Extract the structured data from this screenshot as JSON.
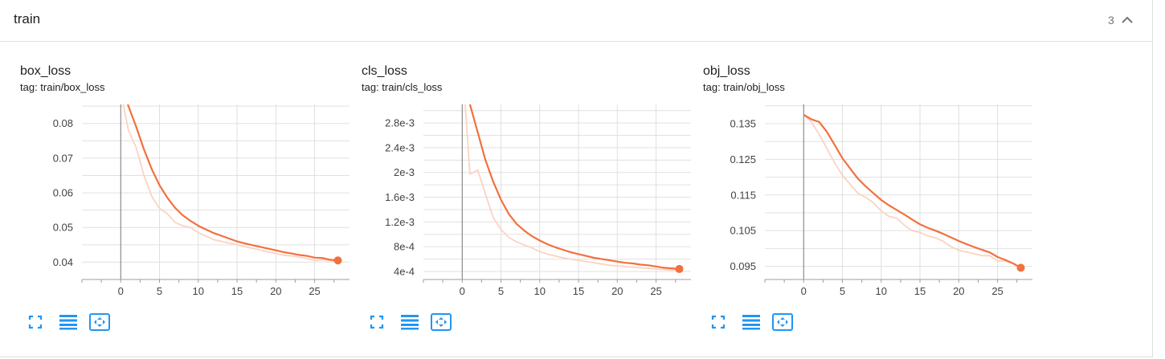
{
  "group": {
    "title": "train",
    "count": "3",
    "toggle_icon": "chevron-up-icon"
  },
  "colors": {
    "smoothed": "#f2703e",
    "raw": "#fbd3c3",
    "grid": "#e0e0e0",
    "axis": "#9e9e9e",
    "zero_line": "#757575",
    "toolbar_icon": "#2196f3"
  },
  "cards": [
    {
      "title": "box_loss",
      "tag": "tag: train/box_loss"
    },
    {
      "title": "cls_loss",
      "tag": "tag: train/cls_loss"
    },
    {
      "title": "obj_loss",
      "tag": "tag: train/obj_loss"
    }
  ],
  "toolbar": {
    "fullscreen_icon": "fullscreen-icon",
    "toggle_log_icon": "data-table-icon",
    "fit_domain_icon": "fit-to-domain-icon"
  },
  "chart_data": [
    {
      "type": "line",
      "title": "box_loss",
      "xlabel": "",
      "ylabel": "",
      "xlim": [
        -5,
        29.5
      ],
      "ylim": [
        0.035,
        0.0855
      ],
      "xticks": [
        0,
        5,
        10,
        15,
        20,
        25
      ],
      "xtick_labels": [
        "0",
        "5",
        "10",
        "15",
        "20",
        "25"
      ],
      "yticks": [
        0.04,
        0.05,
        0.06,
        0.07,
        0.08
      ],
      "ytick_labels": [
        "0.04",
        "0.05",
        "0.06",
        "0.07",
        "0.08"
      ],
      "grid": true,
      "series": [
        {
          "role": "raw",
          "x": [
            0,
            1,
            2,
            3,
            4,
            5,
            6,
            7,
            8,
            9,
            10,
            11,
            12,
            13,
            14,
            15,
            16,
            17,
            18,
            19,
            20,
            21,
            22,
            23,
            24,
            25,
            26,
            27,
            28
          ],
          "y": [
            0.089,
            0.078,
            0.073,
            0.065,
            0.059,
            0.0555,
            0.054,
            0.0515,
            0.0505,
            0.05,
            0.0485,
            0.0475,
            0.0465,
            0.046,
            0.0455,
            0.045,
            0.0445,
            0.044,
            0.0435,
            0.043,
            0.0425,
            0.042,
            0.0418,
            0.0415,
            0.041,
            0.0405,
            0.0407,
            0.0405,
            0.0402
          ]
        },
        {
          "role": "smoothed",
          "x": [
            0,
            1,
            2,
            3,
            4,
            5,
            6,
            7,
            8,
            9,
            10,
            11,
            12,
            13,
            14,
            15,
            16,
            17,
            18,
            19,
            20,
            21,
            22,
            23,
            24,
            25,
            26,
            27,
            28
          ],
          "y": [
            0.092,
            0.085,
            0.079,
            0.0725,
            0.0668,
            0.0622,
            0.0586,
            0.0557,
            0.0535,
            0.0519,
            0.0505,
            0.0494,
            0.0484,
            0.0476,
            0.0468,
            0.046,
            0.0454,
            0.0449,
            0.0444,
            0.0439,
            0.0434,
            0.0429,
            0.0425,
            0.0421,
            0.0418,
            0.0413,
            0.0412,
            0.0407,
            0.0405
          ]
        }
      ]
    },
    {
      "type": "line",
      "title": "cls_loss",
      "xlabel": "",
      "ylabel": "",
      "xlim": [
        -5,
        29.5
      ],
      "ylim": [
        0.00027,
        0.0031
      ],
      "xticks": [
        0,
        5,
        10,
        15,
        20,
        25
      ],
      "xtick_labels": [
        "0",
        "5",
        "10",
        "15",
        "20",
        "25"
      ],
      "yticks": [
        0.0004,
        0.0008,
        0.0012,
        0.0016,
        0.002,
        0.0024,
        0.0028
      ],
      "ytick_labels": [
        "4e-4",
        "8e-4",
        "1.2e-3",
        "1.6e-3",
        "2e-3",
        "2.4e-3",
        "2.8e-3"
      ],
      "grid": true,
      "series": [
        {
          "role": "raw",
          "x": [
            0,
            1,
            2,
            3,
            4,
            5,
            6,
            7,
            8,
            9,
            10,
            11,
            12,
            13,
            14,
            15,
            16,
            17,
            18,
            19,
            20,
            21,
            22,
            23,
            24,
            25,
            26,
            27,
            28
          ],
          "y": [
            0.0038,
            0.00197,
            0.00204,
            0.00165,
            0.00127,
            0.00108,
            0.00095,
            0.00088,
            0.00083,
            0.00078,
            0.00072,
            0.00068,
            0.00065,
            0.00062,
            0.0006,
            0.00058,
            0.00056,
            0.00054,
            0.00052,
            0.0005,
            0.00049,
            0.00048,
            0.00047,
            0.00046,
            0.00045,
            0.00044,
            0.00043,
            0.00042,
            0.00042
          ]
        },
        {
          "role": "smoothed",
          "x": [
            0,
            1,
            2,
            3,
            4,
            5,
            6,
            7,
            8,
            9,
            10,
            11,
            12,
            13,
            14,
            15,
            16,
            17,
            18,
            19,
            20,
            21,
            22,
            23,
            24,
            25,
            26,
            27,
            28
          ],
          "y": [
            0.0045,
            0.0031,
            0.00265,
            0.0022,
            0.00185,
            0.00156,
            0.00133,
            0.00117,
            0.00106,
            0.00097,
            0.0009,
            0.00084,
            0.00079,
            0.00075,
            0.00071,
            0.00068,
            0.00065,
            0.00062,
            0.0006,
            0.00058,
            0.00056,
            0.00054,
            0.00053,
            0.00051,
            0.0005,
            0.00048,
            0.00046,
            0.00045,
            0.00044
          ]
        }
      ]
    },
    {
      "type": "line",
      "title": "obj_loss",
      "xlabel": "",
      "ylabel": "",
      "xlim": [
        -5,
        29.5
      ],
      "ylim": [
        0.0913,
        0.1404
      ],
      "xticks": [
        0,
        5,
        10,
        15,
        20,
        25
      ],
      "xtick_labels": [
        "0",
        "5",
        "10",
        "15",
        "20",
        "25"
      ],
      "yticks": [
        0.095,
        0.105,
        0.115,
        0.125,
        0.135
      ],
      "ytick_labels": [
        "0.095",
        "0.105",
        "0.115",
        "0.125",
        "0.135"
      ],
      "grid": true,
      "series": [
        {
          "role": "raw",
          "x": [
            0,
            1,
            2,
            3,
            4,
            5,
            6,
            7,
            8,
            9,
            10,
            11,
            12,
            13,
            14,
            15,
            16,
            17,
            18,
            19,
            20,
            21,
            22,
            23,
            24,
            25,
            26,
            27,
            28
          ],
          "y": [
            0.1375,
            0.1355,
            0.132,
            0.128,
            0.124,
            0.1205,
            0.118,
            0.1155,
            0.1143,
            0.1128,
            0.1105,
            0.109,
            0.1085,
            0.1065,
            0.105,
            0.1045,
            0.1035,
            0.103,
            0.102,
            0.1005,
            0.0995,
            0.099,
            0.0985,
            0.098,
            0.098,
            0.0965,
            0.0965,
            0.0958,
            0.0947
          ]
        },
        {
          "role": "smoothed",
          "x": [
            0,
            1,
            2,
            3,
            4,
            5,
            6,
            7,
            8,
            9,
            10,
            11,
            12,
            13,
            14,
            15,
            16,
            17,
            18,
            19,
            20,
            21,
            22,
            23,
            24,
            25,
            26,
            27,
            28
          ],
          "y": [
            0.1375,
            0.1362,
            0.1355,
            0.1327,
            0.129,
            0.1253,
            0.1224,
            0.1196,
            0.1174,
            0.1155,
            0.1136,
            0.1121,
            0.1108,
            0.1095,
            0.1081,
            0.1068,
            0.1058,
            0.105,
            0.1041,
            0.1031,
            0.1021,
            0.1012,
            0.1004,
            0.0996,
            0.0989,
            0.0976,
            0.0968,
            0.0958,
            0.0946
          ]
        }
      ]
    }
  ]
}
